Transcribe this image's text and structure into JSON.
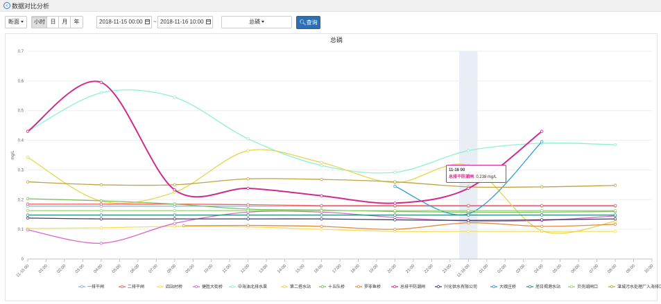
{
  "header": {
    "title": "数据对比分析"
  },
  "toolbar": {
    "section_label": "断面",
    "periods": [
      "小时",
      "日",
      "月",
      "年"
    ],
    "start": "2018-11-15 00:00",
    "range_sep": "~",
    "end": "2018-11-16 10:00",
    "indicator": "总磷",
    "query_label": "查询"
  },
  "tooltip": {
    "time": "11-16 00",
    "series": "总排干防潮闸",
    "value": "0.238 mg/L"
  },
  "colors": {
    "一排干闸": "#7cb5ec",
    "二排干闸": "#f45b5b",
    "四站村桥": "#f7df53",
    "捷胜大街桥": "#d966c7",
    "中海油北排水渠": "#8ef0d2",
    "第二搭水站": "#e6d54a",
    "十五队桥": "#77c35a",
    "罗非鱼桥": "#e08a3c",
    "总排干防潮闸": "#d02a8d",
    "兴化供水有限公司": "#3c3c6b",
    "大碶庄桥": "#2f9ad0",
    "旭日揭港水站": "#2a8a7a",
    "贝壳湖闸口": "#96d46a",
    "湛城污水处理厂入海排口": "#c2a13f"
  },
  "chart_data": {
    "type": "line",
    "title": "总磷",
    "ylabel": "mg/L",
    "ylim": [
      0,
      0.7
    ],
    "yticks": [
      0,
      0.1,
      0.2,
      0.3,
      0.4,
      0.5,
      0.6,
      0.7
    ],
    "categories": [
      "11-15 00",
      "01:00",
      "02:00",
      "03:00",
      "04:00",
      "05:00",
      "06:00",
      "07:00",
      "08:00",
      "09:00",
      "10:00",
      "11:00",
      "12:00",
      "13:00",
      "14:00",
      "15:00",
      "16:00",
      "17:00",
      "18:00",
      "19:00",
      "20:00",
      "21:00",
      "22:00",
      "23:00",
      "11-16 00",
      "01:00",
      "02:00",
      "03:00",
      "04:00",
      "05:00",
      "06:00",
      "07:00",
      "08:00",
      "09:00",
      "10:00"
    ],
    "highlight_category": 24,
    "series": [
      {
        "name": "一排干闸",
        "data": [
          [
            0,
            0.178
          ],
          [
            4,
            0.178
          ],
          [
            8,
            0.178
          ],
          [
            12,
            0.178
          ],
          [
            16,
            0.178
          ],
          [
            20,
            0.178
          ],
          [
            24,
            0.178
          ],
          [
            28,
            0.178
          ],
          [
            32,
            0.178
          ]
        ]
      },
      {
        "name": "二排干闸",
        "data": [
          [
            0,
            0.185
          ],
          [
            4,
            0.185
          ],
          [
            8,
            0.185
          ],
          [
            12,
            0.183
          ],
          [
            16,
            0.18
          ],
          [
            20,
            0.18
          ],
          [
            24,
            0.18
          ],
          [
            28,
            0.18
          ],
          [
            32,
            0.18
          ]
        ]
      },
      {
        "name": "四站村桥",
        "data": [
          [
            0,
            0.103
          ],
          [
            4,
            0.105
          ],
          [
            8,
            0.11
          ],
          [
            12,
            0.108
          ],
          [
            16,
            0.1
          ],
          [
            20,
            0.093
          ],
          [
            24,
            0.093
          ],
          [
            28,
            0.093
          ],
          [
            32,
            0.093
          ]
        ]
      },
      {
        "name": "捷胜大街桥",
        "data": [
          [
            0,
            0.098
          ],
          [
            4,
            0.053
          ],
          [
            8,
            0.12
          ],
          [
            12,
            0.158
          ],
          [
            16,
            0.158
          ],
          [
            20,
            0.14
          ],
          [
            24,
            0.128
          ],
          [
            28,
            0.13
          ],
          [
            32,
            0.145
          ]
        ]
      },
      {
        "name": "中海油北排水渠",
        "data": [
          [
            0,
            0.43
          ],
          [
            4,
            0.56
          ],
          [
            8,
            0.545
          ],
          [
            12,
            0.405
          ],
          [
            16,
            0.315
          ],
          [
            20,
            0.292
          ],
          [
            24,
            0.365
          ],
          [
            28,
            0.39
          ],
          [
            32,
            0.385
          ]
        ]
      },
      {
        "name": "第二搭水站",
        "data": [
          [
            0,
            0.343
          ],
          [
            4,
            0.195
          ],
          [
            8,
            0.225
          ],
          [
            12,
            0.365
          ],
          [
            16,
            0.325
          ],
          [
            20,
            0.257
          ],
          [
            24,
            0.315
          ],
          [
            28,
            0.095
          ],
          [
            32,
            0.127
          ]
        ]
      },
      {
        "name": "十五队桥",
        "data": [
          [
            0,
            0.203
          ],
          [
            4,
            0.196
          ],
          [
            8,
            0.185
          ],
          [
            12,
            0.168
          ],
          [
            16,
            0.165
          ],
          [
            20,
            0.16
          ],
          [
            24,
            0.158
          ],
          [
            28,
            0.158
          ],
          [
            32,
            0.16
          ]
        ]
      },
      {
        "name": "罗非鱼桥",
        "data": [
          [
            8.5,
            0.112
          ],
          [
            12,
            0.113
          ],
          [
            16,
            0.11
          ],
          [
            20,
            0.1
          ],
          [
            24,
            0.122
          ],
          [
            28,
            0.11
          ],
          [
            32,
            0.117
          ]
        ]
      },
      {
        "name": "总排干防潮闸",
        "data": [
          [
            0,
            0.43
          ],
          [
            4,
            0.595
          ],
          [
            8,
            0.233
          ],
          [
            12,
            0.238
          ],
          [
            16,
            0.213
          ],
          [
            20,
            0.188
          ],
          [
            24,
            0.238
          ],
          [
            28,
            0.43
          ]
        ]
      },
      {
        "name": "兴化供水有限公司",
        "data": [
          [
            0,
            0.138
          ],
          [
            4,
            0.135
          ],
          [
            8,
            0.135
          ],
          [
            12,
            0.135
          ],
          [
            16,
            0.135
          ],
          [
            20,
            0.132
          ],
          [
            24,
            0.13
          ],
          [
            28,
            0.132
          ],
          [
            32,
            0.135
          ]
        ]
      },
      {
        "name": "大碶庄桥",
        "data": [
          [
            20,
            0.245
          ],
          [
            24,
            0.152
          ],
          [
            28,
            0.395
          ]
        ]
      },
      {
        "name": "旭日揭港水站",
        "data": [
          [
            0,
            0.148
          ],
          [
            4,
            0.148
          ],
          [
            8,
            0.148
          ],
          [
            12,
            0.148
          ],
          [
            16,
            0.148
          ],
          [
            20,
            0.148
          ],
          [
            24,
            0.148
          ],
          [
            28,
            0.148
          ],
          [
            32,
            0.148
          ]
        ]
      },
      {
        "name": "贝壳湖闸口",
        "data": [
          [
            0,
            0.163
          ],
          [
            4,
            0.163
          ],
          [
            8,
            0.163
          ],
          [
            12,
            0.163
          ],
          [
            16,
            0.163
          ],
          [
            20,
            0.163
          ],
          [
            24,
            0.163
          ],
          [
            28,
            0.163
          ],
          [
            32,
            0.163
          ]
        ]
      },
      {
        "name": "湛城污水处理厂入海排口",
        "data": [
          [
            0,
            0.26
          ],
          [
            4,
            0.25
          ],
          [
            8,
            0.25
          ],
          [
            12,
            0.27
          ],
          [
            16,
            0.268
          ],
          [
            20,
            0.26
          ],
          [
            24,
            0.243
          ],
          [
            28,
            0.243
          ],
          [
            32,
            0.248
          ]
        ]
      }
    ]
  }
}
